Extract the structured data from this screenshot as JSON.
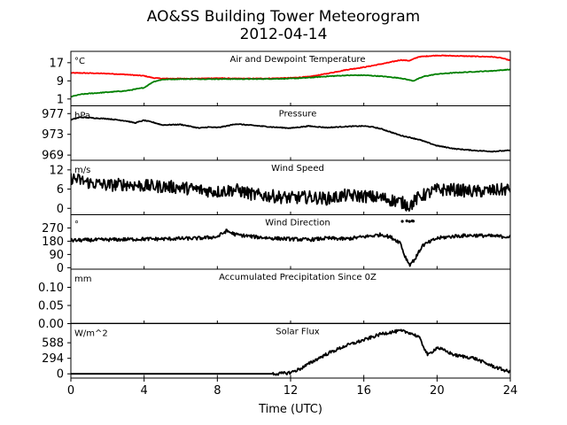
{
  "figure": {
    "title_line1": "AO&SS Building Tower Meteorogram",
    "title_line2": "2012-04-14",
    "xlabel": "Time (UTC)",
    "xticks": [
      0,
      4,
      8,
      12,
      16,
      20,
      24
    ],
    "xlim": [
      0,
      24
    ]
  },
  "chart_data": [
    {
      "type": "line",
      "title": "Air and Dewpoint Temperature",
      "unit": "°C",
      "ylim": [
        -2,
        22
      ],
      "yticks": [
        "1",
        "9",
        "17"
      ],
      "ytick_values": [
        1,
        9,
        17
      ],
      "series": [
        {
          "color": "#ff0000",
          "noise": 0.15,
          "x": [
            0,
            1,
            2,
            3,
            4,
            4.5,
            5,
            6,
            7,
            8,
            9,
            10,
            11,
            12,
            13,
            14,
            15,
            16,
            17,
            17.5,
            18,
            18.5,
            19,
            20,
            21,
            22,
            23,
            23.5,
            24
          ],
          "y": [
            12.5,
            12.4,
            12.2,
            11.8,
            11.2,
            10.3,
            10.0,
            10.0,
            10.0,
            10.2,
            10.0,
            10.0,
            10.1,
            10.3,
            10.8,
            12.2,
            13.8,
            15.0,
            16.5,
            17.3,
            18.2,
            17.9,
            19.6,
            20.2,
            20.0,
            19.8,
            19.6,
            19.1,
            18.0
          ]
        },
        {
          "color": "#008000",
          "noise": 0.15,
          "x": [
            0,
            0.5,
            1,
            2,
            3,
            4,
            4.5,
            5,
            6,
            7,
            8,
            9,
            10,
            11,
            12,
            13,
            14,
            15,
            16,
            17,
            18,
            18.7,
            19.3,
            20,
            21,
            22,
            23,
            24
          ],
          "y": [
            2.0,
            3.0,
            3.4,
            4.0,
            4.6,
            6.0,
            8.6,
            9.6,
            9.8,
            9.8,
            9.8,
            9.8,
            9.8,
            9.9,
            10.0,
            10.4,
            11.0,
            11.4,
            11.5,
            11.0,
            10.2,
            9.0,
            11.0,
            12.0,
            12.6,
            13.0,
            13.4,
            14.0
          ]
        }
      ]
    },
    {
      "type": "line",
      "title": "Pressure",
      "unit": "hPa",
      "ylim": [
        968,
        978.5
      ],
      "yticks": [
        "969",
        "973",
        "977"
      ],
      "ytick_values": [
        969,
        973,
        977
      ],
      "series": [
        {
          "color": "#000000",
          "noise": 0.08,
          "x": [
            0,
            0.5,
            1,
            2,
            3,
            3.5,
            4,
            4.5,
            5,
            6,
            7,
            7.5,
            8,
            8.5,
            9,
            10,
            11,
            12,
            13,
            14,
            15,
            16,
            16.5,
            17,
            18,
            19,
            20,
            21,
            22,
            23,
            24
          ],
          "y": [
            975.8,
            976.3,
            976.2,
            976.0,
            975.6,
            975.2,
            975.7,
            975.3,
            974.8,
            974.9,
            974.2,
            974.4,
            974.3,
            974.6,
            975.0,
            974.7,
            974.4,
            974.2,
            974.6,
            974.3,
            974.5,
            974.6,
            974.4,
            974.0,
            972.8,
            972.0,
            970.8,
            970.2,
            969.9,
            969.7,
            969.9
          ]
        }
      ]
    },
    {
      "type": "line",
      "title": "Wind Speed",
      "unit": "m/s",
      "ylim": [
        -2,
        15
      ],
      "yticks": [
        "0",
        "6",
        "12"
      ],
      "ytick_values": [
        0,
        6,
        12
      ],
      "series": [
        {
          "color": "#000000",
          "noise": 2.0,
          "x": [
            0,
            1,
            2,
            3,
            4,
            5,
            6,
            7,
            8,
            9,
            10,
            11,
            12,
            13,
            14,
            15,
            16,
            17,
            18,
            18.5,
            19,
            20,
            21,
            22,
            23,
            24
          ],
          "y": [
            9.5,
            8.0,
            7.2,
            7.5,
            7.0,
            6.8,
            6.5,
            5.8,
            5.2,
            5.8,
            4.2,
            3.8,
            3.2,
            3.5,
            3.0,
            4.0,
            3.8,
            3.2,
            2.0,
            0.8,
            3.5,
            5.8,
            5.8,
            5.2,
            5.5,
            6.0
          ]
        }
      ]
    },
    {
      "type": "line",
      "title": "Wind Direction",
      "unit": "°",
      "ylim": [
        -10,
        360
      ],
      "yticks": [
        "0",
        "90",
        "180",
        "270"
      ],
      "ytick_values": [
        0,
        90,
        180,
        270
      ],
      "series": [
        {
          "color": "#000000",
          "noise": 12,
          "x": [
            0,
            1,
            2,
            3,
            4,
            5,
            6,
            7,
            8,
            8.5,
            9,
            10,
            11,
            12,
            13,
            14,
            15,
            16,
            17,
            17.5,
            18,
            18.2,
            18.5,
            18.8,
            19.2,
            19.6,
            20,
            21,
            22,
            23,
            24
          ],
          "y": [
            185,
            188,
            190,
            192,
            195,
            195,
            198,
            200,
            210,
            250,
            225,
            210,
            200,
            195,
            190,
            200,
            195,
            210,
            225,
            205,
            170,
            90,
            20,
            60,
            150,
            175,
            200,
            215,
            220,
            215,
            210
          ]
        },
        {
          "color": "#000000",
          "style": "dots",
          "x": [
            18.1,
            18.35,
            18.5,
            18.65,
            18.7
          ],
          "y": [
            315,
            318,
            314,
            318,
            316
          ]
        }
      ]
    },
    {
      "type": "line",
      "title": "Accumulated Precipitation Since 0Z",
      "unit": "mm",
      "ylim": [
        0,
        0.15
      ],
      "yticks": [
        "0.00",
        "0.05",
        "0.10"
      ],
      "ytick_values": [
        0,
        0.05,
        0.1
      ],
      "series": [
        {
          "color": "#000000",
          "x": [
            0,
            24
          ],
          "y": [
            0.0,
            0.0
          ]
        }
      ]
    },
    {
      "type": "line",
      "title": "Solar Flux",
      "unit": "W/m^2",
      "ylim": [
        -80,
        950
      ],
      "yticks": [
        "0",
        "294",
        "588"
      ],
      "ytick_values": [
        0,
        294,
        588
      ],
      "series": [
        {
          "color": "#000000",
          "noise": 30,
          "x": [
            0,
            11,
            11.5,
            12,
            12.5,
            13,
            13.5,
            14,
            15,
            16,
            16.5,
            17,
            17.5,
            18,
            18.5,
            19,
            19.5,
            20,
            21,
            22,
            23,
            24
          ],
          "y": [
            0,
            0,
            5,
            25,
            90,
            190,
            290,
            380,
            530,
            640,
            700,
            760,
            790,
            810,
            780,
            700,
            350,
            500,
            350,
            300,
            150,
            30
          ]
        }
      ]
    }
  ]
}
